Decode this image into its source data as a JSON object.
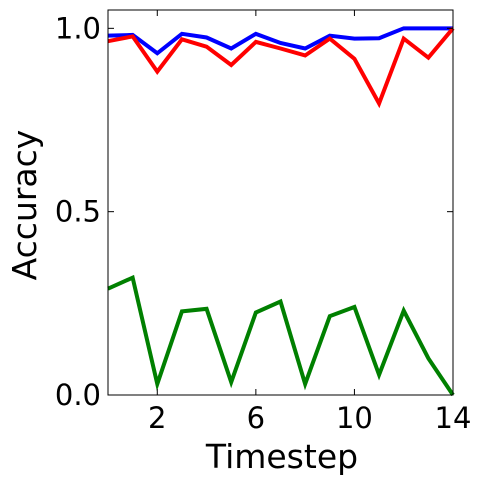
{
  "chart_data": {
    "type": "line",
    "xlabel": "Timestep",
    "ylabel": "Accuracy",
    "xlim": [
      0,
      14
    ],
    "ylim": [
      0,
      1.05
    ],
    "x_ticks": [
      {
        "value": 2,
        "label": "2"
      },
      {
        "value": 6,
        "label": "6"
      },
      {
        "value": 10,
        "label": "10"
      },
      {
        "value": 14,
        "label": "14"
      }
    ],
    "y_ticks": [
      {
        "value": 0.0,
        "label": "0.0"
      },
      {
        "value": 0.5,
        "label": "0.5"
      },
      {
        "value": 1.0,
        "label": "1.0"
      }
    ],
    "grid": false,
    "legend": "none",
    "x": [
      0,
      1,
      2,
      3,
      4,
      5,
      6,
      7,
      8,
      9,
      10,
      11,
      12,
      13,
      14
    ],
    "series": [
      {
        "color": "#0000ff",
        "values": [
          0.98,
          0.982,
          0.932,
          0.985,
          0.975,
          0.945,
          0.985,
          0.96,
          0.945,
          0.98,
          0.972,
          0.973,
          1.0,
          1.0,
          1.0
        ]
      },
      {
        "color": "#ff0000",
        "values": [
          0.965,
          0.978,
          0.882,
          0.97,
          0.95,
          0.9,
          0.963,
          0.945,
          0.926,
          0.972,
          0.917,
          0.795,
          0.972,
          0.92,
          1.0
        ]
      },
      {
        "color": "#008000",
        "values": [
          0.29,
          0.32,
          0.03,
          0.228,
          0.235,
          0.035,
          0.225,
          0.255,
          0.03,
          0.215,
          0.24,
          0.055,
          0.23,
          0.1,
          0.0
        ]
      }
    ]
  }
}
